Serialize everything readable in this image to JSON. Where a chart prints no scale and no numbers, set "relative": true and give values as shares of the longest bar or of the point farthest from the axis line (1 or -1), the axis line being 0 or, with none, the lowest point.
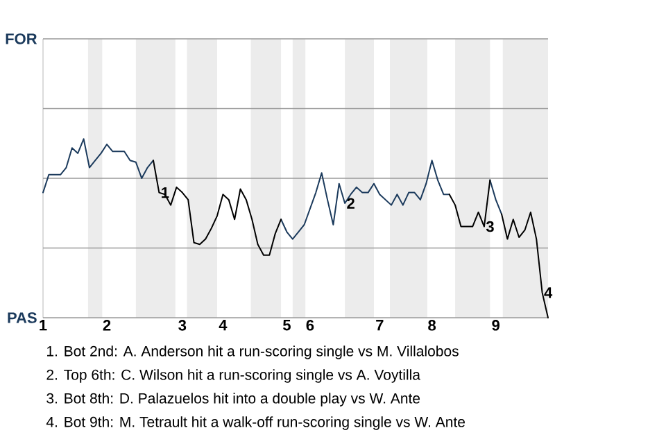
{
  "chart_data": {
    "type": "line",
    "relative": true,
    "line_style": "solid",
    "categories": [
      "1",
      null,
      null,
      null,
      null,
      null,
      null,
      null,
      null,
      null,
      null,
      "2",
      null,
      null,
      null,
      null,
      null,
      null,
      null,
      null,
      null,
      null,
      null,
      null,
      "3",
      null,
      null,
      null,
      null,
      null,
      null,
      "4",
      null,
      null,
      null,
      null,
      null,
      null,
      null,
      null,
      null,
      null,
      "5",
      null,
      null,
      null,
      "6",
      null,
      null,
      null,
      null,
      null,
      null,
      null,
      null,
      null,
      null,
      null,
      "7",
      null,
      null,
      null,
      null,
      null,
      null,
      null,
      null,
      "8",
      null,
      null,
      null,
      null,
      null,
      null,
      null,
      null,
      null,
      null,
      "9",
      null,
      null,
      null,
      null,
      null,
      null,
      null,
      null,
      null
    ],
    "ref_lines": [
      {
        "axis": "y",
        "value": 1.56,
        "label": "FOR",
        "color": "#9a9a9a"
      },
      {
        "axis": "y",
        "value": 1.17,
        "color": "#9a9a9a"
      },
      {
        "axis": "y",
        "value": 0.78,
        "color": "#9a9a9a"
      },
      {
        "axis": "y",
        "value": 0.39,
        "color": "#9a9a9a"
      },
      {
        "axis": "y",
        "value": 0,
        "label": "PAS",
        "color": "#9a9a9a"
      }
    ],
    "series": [
      {
        "color": "#1b3a5c",
        "values": [
          0.7,
          0.8,
          0.8,
          0.8,
          0.84,
          0.95,
          0.92,
          1,
          0.84,
          0.88,
          0.92,
          0.97,
          0.93,
          0.93,
          0.93,
          0.88,
          0.87,
          0.78,
          0.84,
          0.88,
          null,
          null,
          null,
          null,
          null,
          null,
          null,
          null,
          null,
          null,
          null,
          null,
          null,
          null,
          null,
          null,
          null,
          null,
          null,
          null,
          null,
          0.55,
          0.48,
          0.44,
          0.48,
          0.52,
          0.61,
          0.7,
          0.81,
          0.66,
          0.52,
          0.75,
          0.64,
          0.69,
          0.73,
          0.7,
          0.7,
          0.75,
          0.69,
          0.66,
          0.63,
          0.69,
          0.63,
          0.7,
          0.7,
          0.66,
          0.75,
          0.88,
          0.77,
          0.69,
          0.69,
          null,
          null,
          null,
          null,
          null,
          null,
          0.77,
          0.66,
          0.58,
          null,
          null,
          null,
          null,
          null,
          null,
          null,
          null
        ]
      },
      {
        "color": "#000000",
        "values": [
          null,
          null,
          null,
          null,
          null,
          null,
          null,
          null,
          null,
          null,
          null,
          null,
          null,
          null,
          null,
          null,
          null,
          null,
          null,
          0.88,
          0.7,
          0.69,
          0.63,
          0.73,
          0.7,
          0.66,
          0.42,
          0.41,
          0.44,
          0.5,
          0.57,
          0.69,
          0.66,
          0.55,
          0.72,
          0.66,
          0.55,
          0.41,
          0.35,
          0.35,
          0.47,
          0.55,
          null,
          null,
          null,
          null,
          null,
          null,
          null,
          null,
          null,
          null,
          null,
          null,
          null,
          null,
          null,
          null,
          null,
          null,
          null,
          null,
          null,
          null,
          null,
          null,
          null,
          null,
          null,
          null,
          0.69,
          0.63,
          0.51,
          0.51,
          0.51,
          0.59,
          0.51,
          0.77,
          null,
          0.58,
          0.44,
          0.55,
          0.45,
          0.49,
          0.59,
          0.44,
          0.14,
          0
        ]
      }
    ],
    "annotations": [
      {
        "text": "1",
        "y": 0.7
      },
      {
        "text": "2",
        "y": 0.64
      },
      {
        "text": "3",
        "y": 0.51
      },
      {
        "text": "4",
        "y": 0.14
      },
      "1. Bot 2nd: A. Anderson hit a run-scoring single vs M. Villalobos",
      "2. Top 6th: C. Wilson hit a run-scoring single vs A. Voytilla",
      "3. Bot 8th: D. Palazuelos hit into a double play vs W. Ante",
      "4. Bot 9th: M. Tetrault hit a walk-off run-scoring single vs W. Ante"
    ]
  }
}
